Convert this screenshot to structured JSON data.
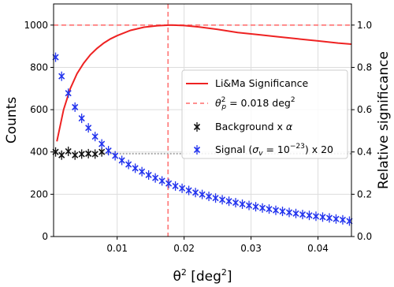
{
  "chart_data": {
    "type": "line",
    "xlabel": "θ² [deg²]",
    "ylabel_left": "Counts",
    "ylabel_right": "Relative significance",
    "xlim": [
      0.0005,
      0.045
    ],
    "ylim_left": [
      0,
      1100
    ],
    "ylim_right": [
      0.0,
      1.1
    ],
    "x_ticks": [
      0.01,
      0.02,
      0.03,
      0.04
    ],
    "x_tick_labels": [
      "0.01",
      "0.02",
      "0.03",
      "0.04"
    ],
    "y_left_ticks": [
      0,
      200,
      400,
      600,
      800,
      1000
    ],
    "y_left_tick_labels": [
      "0",
      "200",
      "400",
      "600",
      "800",
      "1000"
    ],
    "y_right_ticks": [
      0.0,
      0.2,
      0.4,
      0.6,
      0.8,
      1.0
    ],
    "y_right_tick_labels": [
      "0.0",
      "0.2",
      "0.4",
      "0.6",
      "0.8",
      "1.0"
    ],
    "grid": true,
    "legend_placement": "center-right",
    "series": [
      {
        "name": "Li&Ma Significance",
        "kind": "line",
        "axis": "right",
        "color": "#ee2222",
        "x": [
          0.001,
          0.002,
          0.003,
          0.004,
          0.005,
          0.006,
          0.007,
          0.008,
          0.009,
          0.01,
          0.012,
          0.014,
          0.016,
          0.018,
          0.02,
          0.022,
          0.025,
          0.028,
          0.031,
          0.034,
          0.037,
          0.04,
          0.043,
          0.045
        ],
        "y": [
          0.45,
          0.6,
          0.7,
          0.77,
          0.82,
          0.86,
          0.89,
          0.915,
          0.935,
          0.95,
          0.975,
          0.99,
          0.997,
          1.0,
          0.998,
          0.992,
          0.98,
          0.965,
          0.955,
          0.945,
          0.935,
          0.925,
          0.915,
          0.91
        ]
      },
      {
        "name": "θ²_p = 0.018 deg²",
        "label_prefix": "θ",
        "label_sup": "2",
        "label_sub": "p",
        "label_suffix": " = 0.018 deg",
        "label_suffix_sup": "2",
        "kind": "reference",
        "color": "#ff8080",
        "vline_x": 0.0176,
        "hline_y_right": 1.0
      },
      {
        "name": "Background x α",
        "label_text": "Background x ",
        "label_greek": "α",
        "kind": "errorbar",
        "axis": "left",
        "color": "#111111",
        "x": [
          0.0008,
          0.0017,
          0.0027,
          0.0037,
          0.0047,
          0.0057,
          0.0067,
          0.0077
        ],
        "y": [
          400,
          385,
          403,
          385,
          390,
          392,
          390,
          400
        ],
        "extension_line": {
          "color": "#aaaaaa",
          "style": "dotted",
          "y": 392,
          "x_start": 0.008,
          "x_end": 0.045
        }
      },
      {
        "name": "Signal (σ_v = 10⁻²³) x 20",
        "label_prefix": "Signal (",
        "label_greek": "σ",
        "label_sub": "v",
        "label_mid": " = 10",
        "label_sup": "−23",
        "label_suffix": ") x 20",
        "kind": "errorbar",
        "axis": "left",
        "color": "#2233ee",
        "x": [
          0.0008,
          0.0017,
          0.0027,
          0.0037,
          0.0047,
          0.0057,
          0.0067,
          0.0077,
          0.0087,
          0.0097,
          0.0107,
          0.0117,
          0.0127,
          0.0137,
          0.0147,
          0.0157,
          0.0167,
          0.0177,
          0.0187,
          0.0197,
          0.0207,
          0.0217,
          0.0227,
          0.0237,
          0.0247,
          0.0257,
          0.0267,
          0.0277,
          0.0287,
          0.0297,
          0.0307,
          0.0317,
          0.0327,
          0.0337,
          0.0347,
          0.0357,
          0.0367,
          0.0377,
          0.0387,
          0.0397,
          0.0407,
          0.0417,
          0.0427,
          0.0437,
          0.0447
        ],
        "y": [
          848,
          758,
          678,
          612,
          559,
          514,
          473,
          438,
          406,
          382,
          360,
          341,
          323,
          307,
          291,
          277,
          263,
          251,
          239,
          228,
          218,
          208,
          199,
          190,
          182,
          174,
          167,
          160,
          153,
          147,
          141,
          135,
          130,
          124,
          119,
          114,
          109,
          104,
          100,
          96,
          92,
          88,
          83,
          79,
          73
        ]
      }
    ]
  }
}
